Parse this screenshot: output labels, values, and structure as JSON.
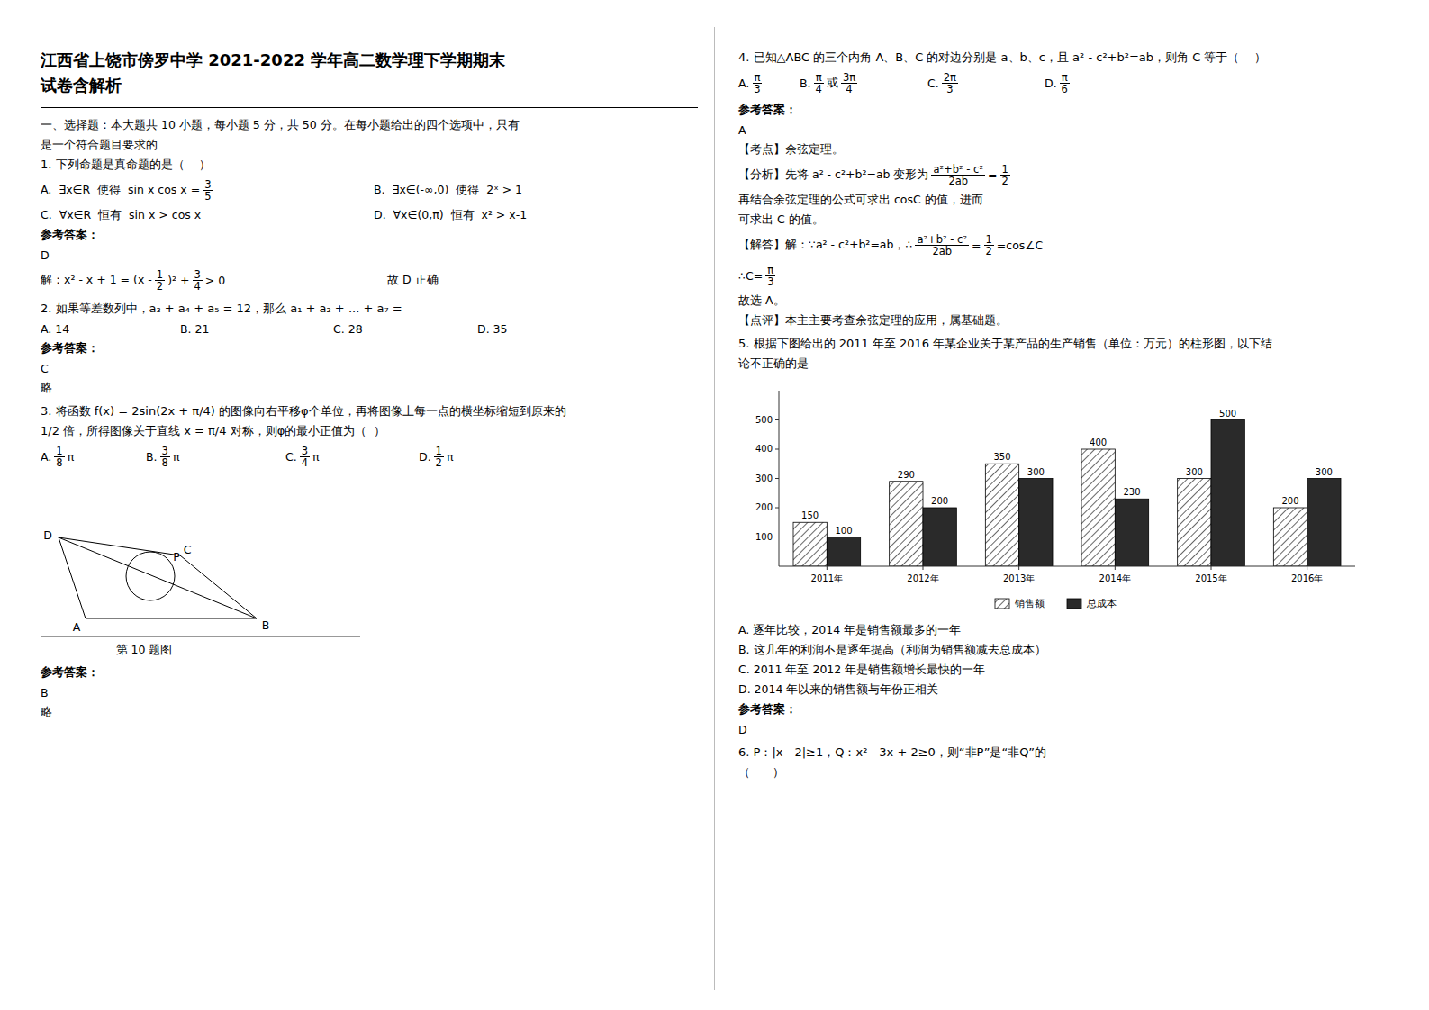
{
  "chart_data": {
    "type": "bar",
    "categories": [
      "2011年",
      "2012年",
      "2013年",
      "2014年",
      "2015年",
      "2016年"
    ],
    "series": [
      {
        "name": "销售额",
        "color": "#ffffff",
        "values": [
          150,
          290,
          350,
          400,
          300,
          200
        ]
      },
      {
        "name": "总成本",
        "color": "#2a2a2a",
        "values": [
          100,
          200,
          300,
          230,
          500,
          300
        ]
      }
    ],
    "ylim": [
      0,
      600
    ],
    "yticks": [
      100,
      200,
      300,
      400,
      500
    ],
    "grid": false,
    "legend": "bottom",
    "data_labels": true,
    "annotations": [
      [
        "江西省上饶市傍罗中学 2021-2022 学年高二数学理下学期期末"
      ],
      [
        "试卷含解析"
      ],
      [
        "一、选择题：本大题共 10 小题，每小题 5 分，共 50 分。在每小题给出的四个选项中，只有"
      ],
      [
        "是一个符合题目要求的"
      ],
      [
        "1. 下列命题是真命题的是（    ）"
      ],
      [
        "A.  ∃x∈R  使得  sin x cos x =",
        [
          "3",
          "5"
        ]
      ],
      [
        "B.  ∃x∈(-∞,0)  使得  2ˣ > 1"
      ],
      [
        "C.  ∀x∈R  恒有  sin x > cos x"
      ],
      [
        "D.  ∀x∈(0,π)  恒有  x² > x-1"
      ],
      [
        "参考答案："
      ],
      [
        "D"
      ],
      [
        "解：x² - x + 1 = (x -",
        [
          "1",
          "2"
        ],
        ")² +",
        [
          "3",
          "4"
        ],
        "> 0"
      ],
      [
        "故 D 正确"
      ],
      [
        "2. 如果等差数列中，a₃ + a₄ + a₅ = 12，那么 a₁ + a₂ + ... + a₇ ="
      ],
      [
        "A. 14"
      ],
      [
        "B. 21"
      ],
      [
        "C. 28"
      ],
      [
        "D. 35"
      ],
      [
        "参考答案："
      ],
      [
        "C"
      ],
      [
        "略"
      ],
      [
        "3. 将函数 f(x) = 2sin(2x + π/4) 的图像向右平移φ个单位，再将图像上每一点的横坐标缩短到原来的"
      ],
      [
        "1/2 倍，所得图像关于直线 x = π/4 对称，则φ的最小正值为（  ）"
      ],
      [
        "A.",
        [
          "1",
          "8"
        ],
        "π"
      ],
      [
        "B.",
        [
          "3",
          "8"
        ],
        "π"
      ],
      [
        "C.",
        [
          "3",
          "4"
        ],
        "π"
      ],
      [
        "D.",
        [
          "1",
          "2"
        ],
        "π"
      ],
      [
        "D",
        "C",
        "A",
        "B",
        "P"
      ],
      [
        "第 10 题图"
      ],
      [
        "参考答案："
      ],
      [
        "B"
      ],
      [
        "略"
      ],
      [
        "4. 已知△ABC 的三个内角 A、B、C 的对边分别是 a、b、c，且 a² - c²+b²=ab，则角 C 等于（    ）"
      ],
      [
        "A.",
        [
          "π",
          "3"
        ]
      ],
      [
        "B.",
        [
          "π",
          "4"
        ],
        "或",
        [
          "3π",
          "4"
        ]
      ],
      [
        "C.",
        [
          "2π",
          "3"
        ]
      ],
      [
        "D.",
        [
          "π",
          "6"
        ]
      ],
      [
        "参考答案："
      ],
      [
        "A"
      ],
      [
        "【考点】余弦定理。"
      ],
      [
        "【分析】先将 a² - c²+b²=ab 变形为",
        [
          "a²+b² - c²",
          "2ab"
        ],
        "=",
        [
          "1",
          "2"
        ]
      ],
      [
        "再结合余弦定理的公式可求出 cosC 的值，进而"
      ],
      [
        "可求出 C 的值。"
      ],
      [
        "【解答】解：∵a² - c²+b²=ab，∴",
        [
          "a²+b² - c²",
          "2ab"
        ],
        "=",
        [
          "1",
          "2"
        ],
        "=cos∠C"
      ],
      [
        "∴C=",
        [
          "π",
          "3"
        ]
      ],
      [
        "故选 A。"
      ],
      [
        "【点评】本主主要考查余弦定理的应用，属基础题。"
      ],
      [
        "5. 根据下图给出的 2011 年至 2016 年某企业关于某产品的生产销售（单位：万元）的柱形图，以下结"
      ],
      [
        "论不正确的是"
      ],
      [
        "A. 逐年比较，2014 年是销售额最多的一年"
      ],
      [
        "B. 这几年的利润不是逐年提高（利润为销售额减去总成本）"
      ],
      [
        "C. 2011 年至 2012 年是销售额增长最快的一年"
      ],
      [
        "D. 2014 年以来的销售额与年份正相关"
      ],
      [
        "参考答案："
      ],
      [
        "D"
      ],
      [
        "6. P：|x - 2|≥1，Q：x² - 3x + 2≥0，则“非P”是“非Q”的"
      ],
      [
        "（      ）"
      ]
    ]
  }
}
